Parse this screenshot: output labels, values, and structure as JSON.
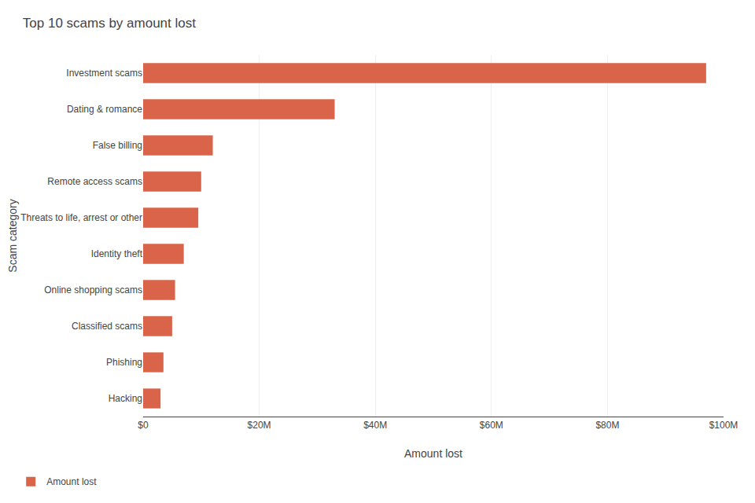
{
  "chart_data": {
    "type": "bar",
    "orientation": "horizontal",
    "title": "Top 10 scams by amount lost",
    "xlabel": "Amount lost",
    "ylabel": "Scam category",
    "categories": [
      "Investment scams",
      "Dating & romance",
      "False billing",
      "Remote access scams",
      "Threats to life, arrest or other",
      "Identity theft",
      "Online shopping scams",
      "Classified scams",
      "Phishing",
      "Hacking"
    ],
    "series": [
      {
        "name": "Amount lost",
        "color": "#d9644a",
        "values": [
          97,
          33,
          12,
          10,
          9.5,
          7,
          5.5,
          5,
          3.5,
          3
        ]
      }
    ],
    "xlim": [
      0,
      100
    ],
    "xticks": [
      {
        "value": 0,
        "label": "$0"
      },
      {
        "value": 20,
        "label": "$20M"
      },
      {
        "value": 40,
        "label": "$40M"
      },
      {
        "value": 60,
        "label": "$60M"
      },
      {
        "value": 80,
        "label": "$80M"
      },
      {
        "value": 100,
        "label": "$100M"
      }
    ],
    "grid": true,
    "legend": "lower left"
  }
}
